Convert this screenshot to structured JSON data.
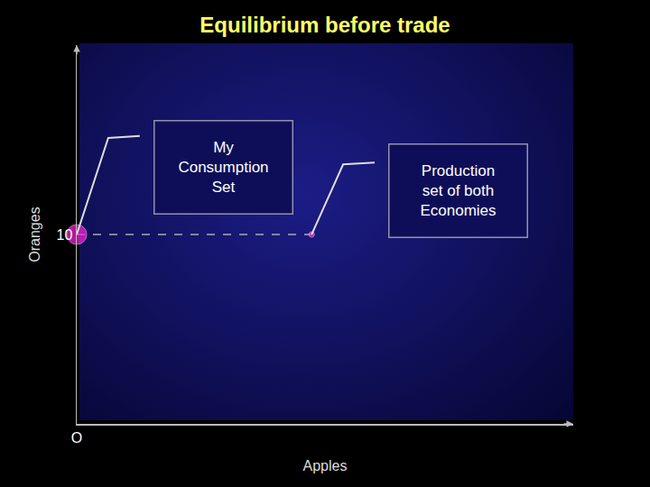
{
  "chart_data": {
    "type": "scatter",
    "title": "Equilibrium before trade",
    "x_label": "Apples",
    "y_label": "Oranges",
    "x": [
      0,
      12.3
    ],
    "values": [
      10,
      10
    ],
    "color": "#ff22dd",
    "marker": "circle",
    "line_style": "dash",
    "xlim": [
      0,
      26
    ],
    "xticks": [
      {
        "value": 0,
        "label": "O"
      }
    ],
    "ylim": [
      0,
      20
    ],
    "yticks": [
      10
    ],
    "grid": false,
    "annotations": [
      {
        "lines": [
          "My",
          "Consumption",
          "Set"
        ],
        "x": 0,
        "y": 10
      },
      {
        "lines": [
          "Production",
          "set of both",
          "Economies"
        ],
        "x": 12.3,
        "y": 10
      }
    ]
  }
}
